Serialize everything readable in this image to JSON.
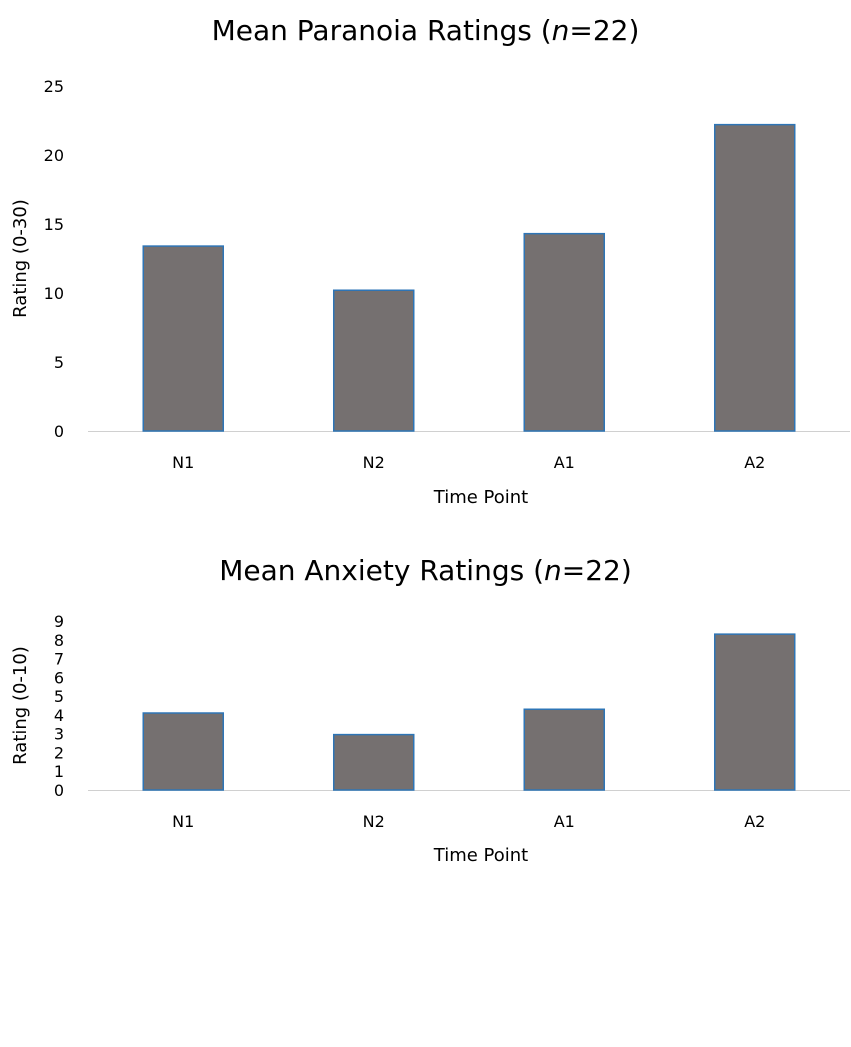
{
  "chart_data": [
    {
      "type": "bar",
      "title": {
        "prefix": "Mean Paranoia Ratings (",
        "italic": "n",
        "suffix": "=22)"
      },
      "categories": [
        "N1",
        "N2",
        "A1",
        "A2"
      ],
      "values": [
        13.4,
        10.2,
        14.3,
        22.2
      ],
      "xlabel": "Time Point",
      "ylabel": "Rating (0-30)",
      "ylim": [
        0,
        25
      ],
      "yticks": [
        "0",
        "5",
        "10",
        "15",
        "20",
        "25"
      ],
      "grid": false,
      "legend": "none",
      "bar_color": "#757070",
      "bar_edge_color": "#2E75B6"
    },
    {
      "type": "bar",
      "title": {
        "prefix": "Mean Anxiety Ratings (",
        "italic": "n",
        "suffix": "=22)"
      },
      "categories": [
        "N1",
        "N2",
        "A1",
        "A2"
      ],
      "values": [
        4.1,
        2.95,
        4.3,
        8.3
      ],
      "xlabel": "Time Point",
      "ylabel": "Rating (0-10)",
      "ylim": [
        0,
        9
      ],
      "yticks": [
        "0",
        "1",
        "2",
        "3",
        "4",
        "5",
        "6",
        "7",
        "8",
        "9"
      ],
      "grid": false,
      "legend": "none",
      "bar_color": "#757070",
      "bar_edge_color": "#2E75B6"
    }
  ]
}
